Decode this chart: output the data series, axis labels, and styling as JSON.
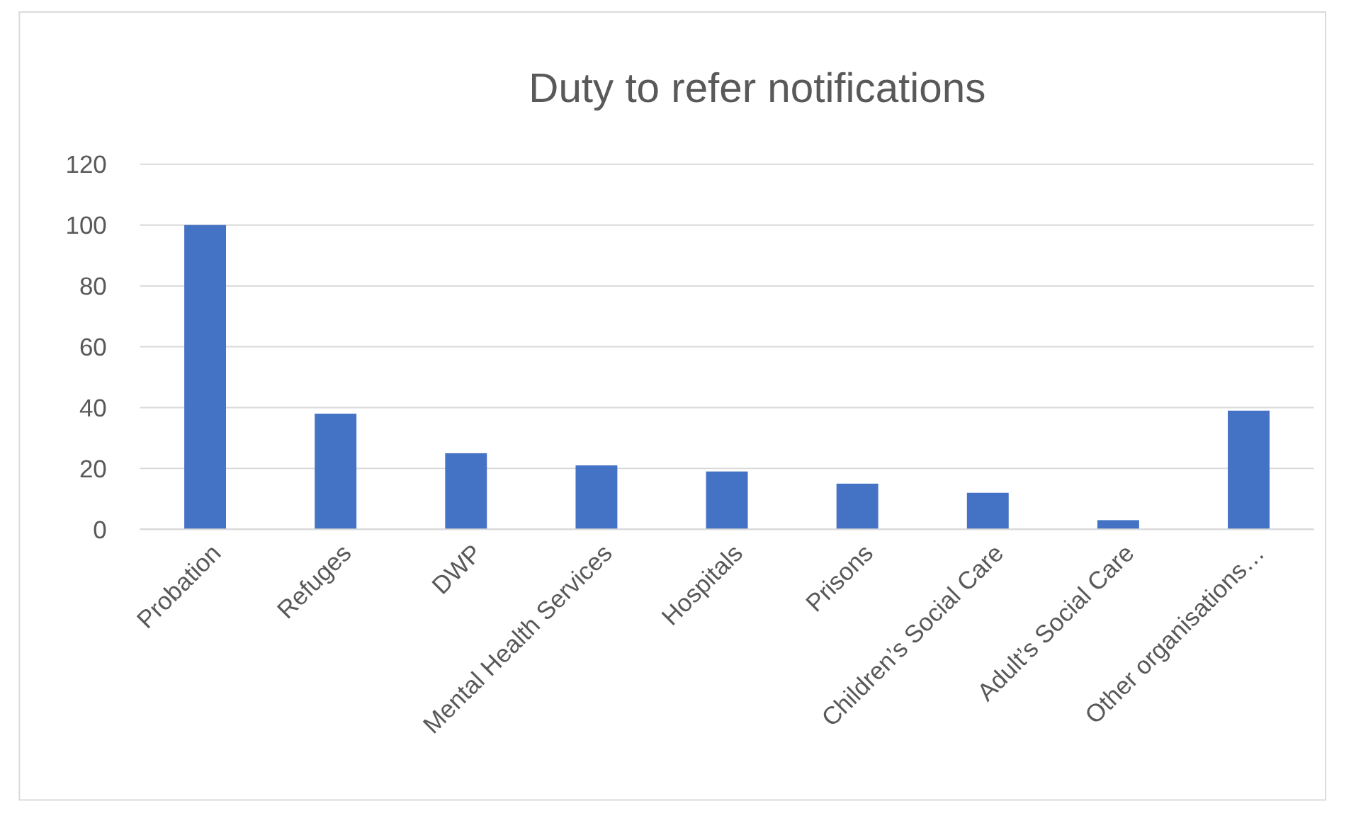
{
  "chart_data": {
    "type": "bar",
    "title": "Duty to refer notifications",
    "categories": [
      "Probation",
      "Refuges",
      "DWP",
      "Mental Health Services",
      "Hospitals",
      "Prisons",
      "Children’s Social Care",
      "Adult’s Social Care",
      "Other organisations…"
    ],
    "values": [
      100,
      38,
      25,
      21,
      19,
      15,
      12,
      3,
      39
    ],
    "color": "#4472c4",
    "ylim": [
      0,
      120
    ],
    "yticks": [
      0,
      20,
      40,
      60,
      80,
      100,
      120
    ],
    "grid": "y"
  }
}
